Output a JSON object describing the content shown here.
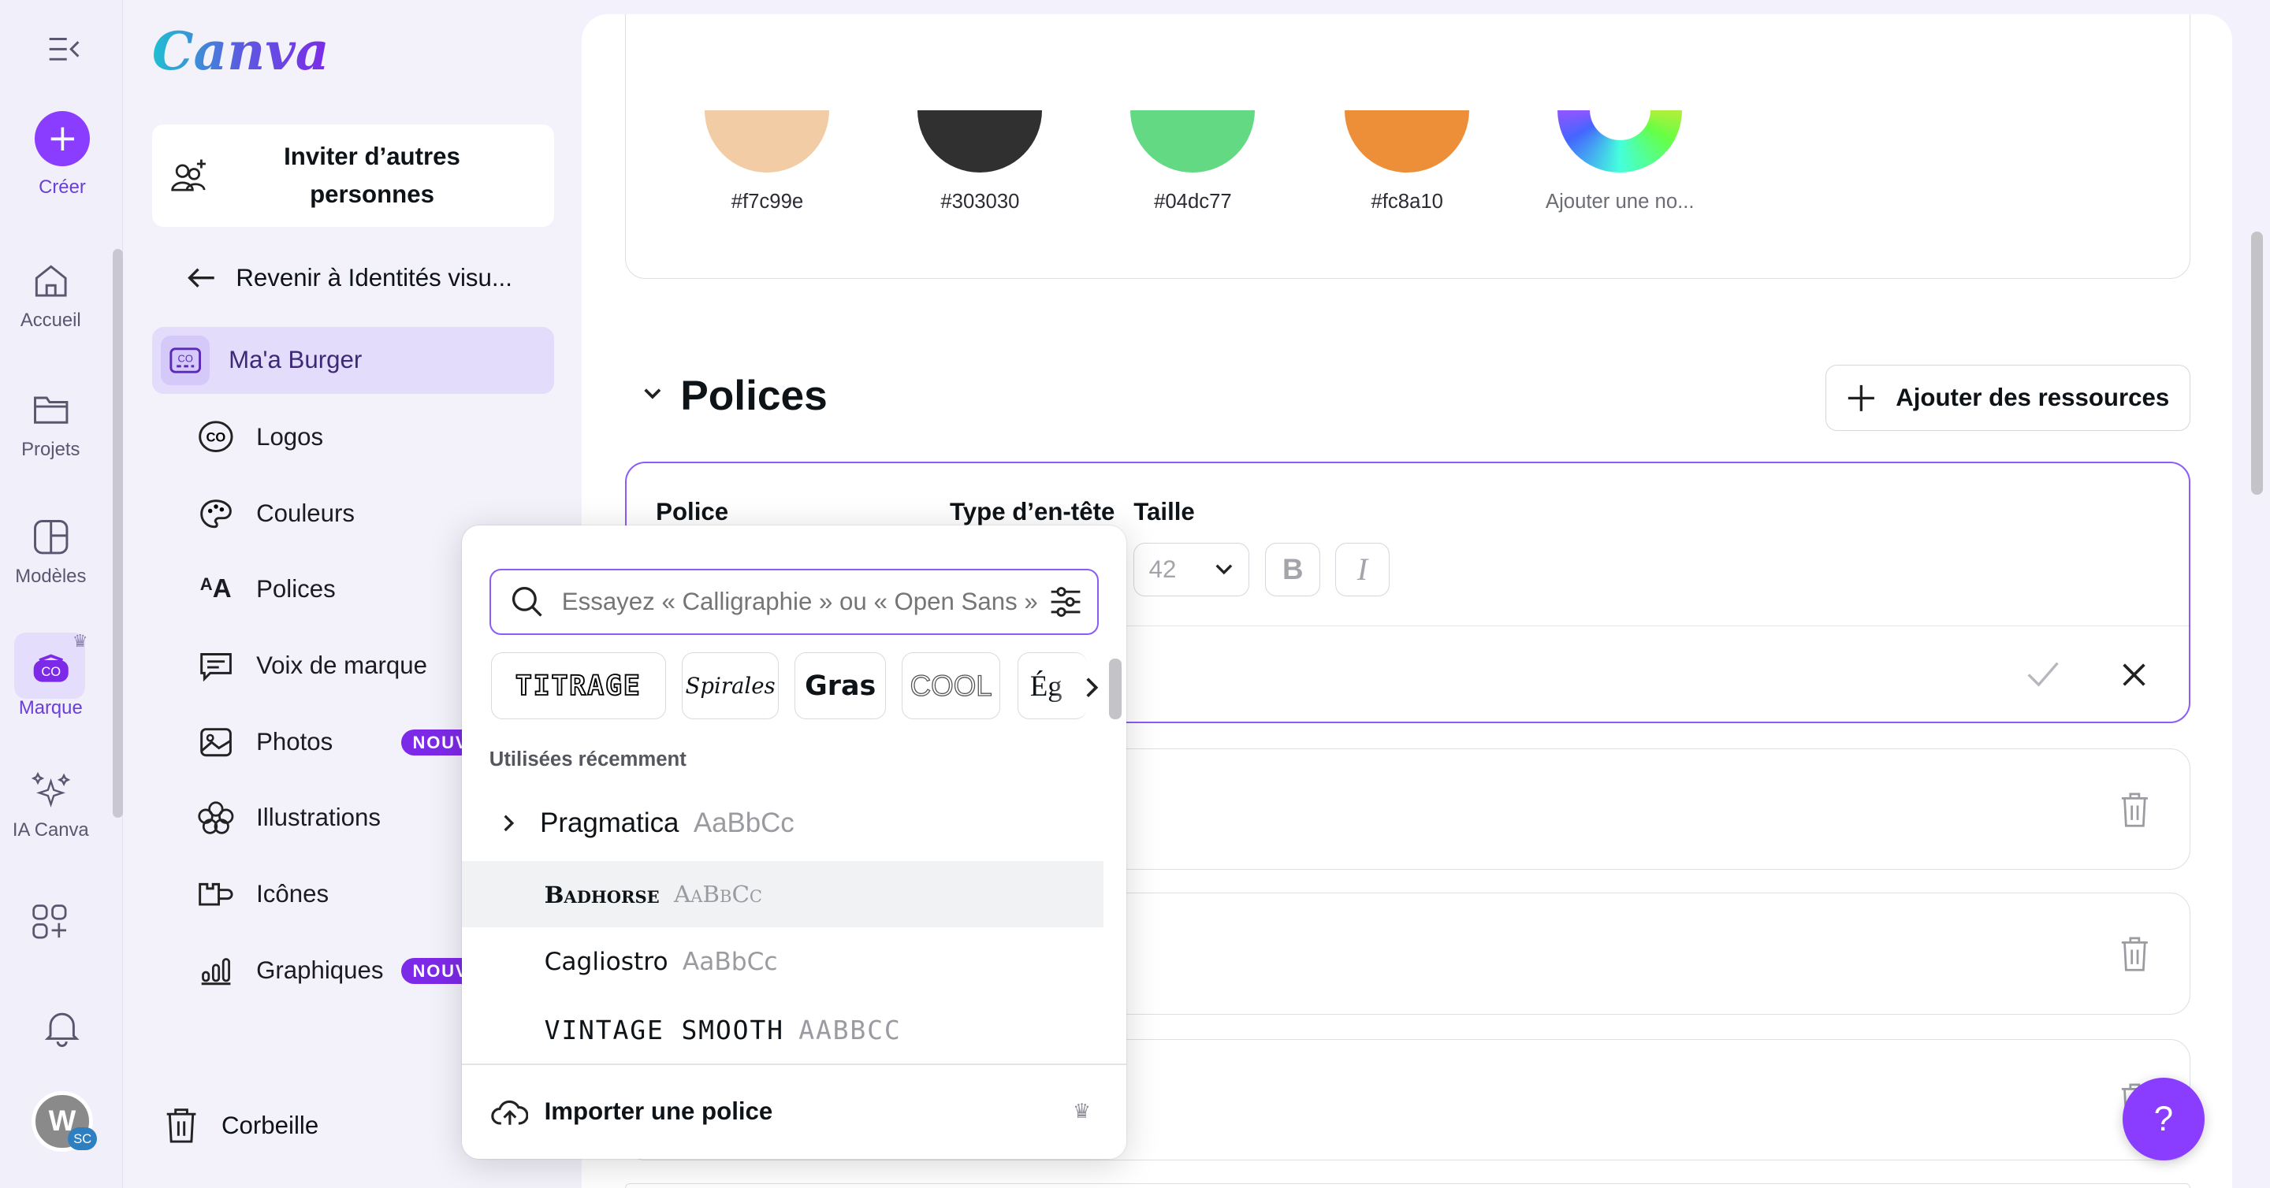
{
  "rail": {
    "create": "Créer",
    "items": [
      {
        "label": "Accueil",
        "icon": "home-icon"
      },
      {
        "label": "Projets",
        "icon": "folder-icon"
      },
      {
        "label": "Modèles",
        "icon": "templates-icon"
      },
      {
        "label": "Marque",
        "icon": "brand-icon"
      },
      {
        "label": "IA Canva",
        "icon": "sparkles-icon"
      }
    ],
    "avatar_initial": "W",
    "avatar_team": "SC"
  },
  "sidebar": {
    "logo": "Canva",
    "invite": "Inviter d’autres personnes",
    "back": "Revenir à Identités visu...",
    "brand_kit": "Ma'a Burger",
    "items": [
      {
        "label": "Logos"
      },
      {
        "label": "Couleurs"
      },
      {
        "label": "Polices"
      },
      {
        "label": "Voix de marque"
      },
      {
        "label": "Photos",
        "badge": "NOUV"
      },
      {
        "label": "Illustrations"
      },
      {
        "label": "Icônes"
      },
      {
        "label": "Graphiques",
        "badge": "NOUV"
      }
    ],
    "trash": "Corbeille"
  },
  "colors": {
    "swatches": [
      {
        "hex": "#f7c99e",
        "label": "#f7c99e"
      },
      {
        "hex": "#303030",
        "label": "#303030"
      },
      {
        "hex": "#04dc77",
        "label": "#04dc77"
      },
      {
        "hex": "#fc8a10",
        "label": "#fc8a10"
      }
    ],
    "add_label": "Ajouter une no..."
  },
  "fonts": {
    "title": "Polices",
    "add_button": "Ajouter des ressources",
    "col_font": "Police",
    "col_type": "Type d’en-tête",
    "col_size": "Taille",
    "size_value": "42",
    "bold": "B",
    "italic": "I"
  },
  "picker": {
    "search_placeholder": "Essayez « Calligraphie » ou « Open Sans »",
    "chips": [
      "TITRAGE",
      "Spirales",
      "Gras",
      "COOL",
      "Ég"
    ],
    "recent_label": "Utilisées récemment",
    "recent": [
      {
        "name": "Pragmatica",
        "sample": "AaBbCc"
      },
      {
        "name": "Badhorse",
        "sample": "AaBbCc"
      },
      {
        "name": "Cagliostro",
        "sample": "AaBbCc"
      },
      {
        "name": "Vintage Smooth",
        "sample": "AaBbCc"
      }
    ],
    "import": "Importer une police"
  },
  "help": "?",
  "accent": "#7d2ae8"
}
